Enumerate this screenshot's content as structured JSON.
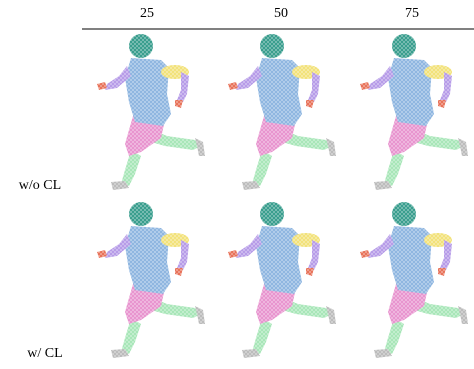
{
  "header": {
    "columns": [
      "25",
      "50",
      "75"
    ]
  },
  "rows": [
    {
      "label": "w/o CL"
    },
    {
      "label": "w/ CL"
    }
  ]
}
